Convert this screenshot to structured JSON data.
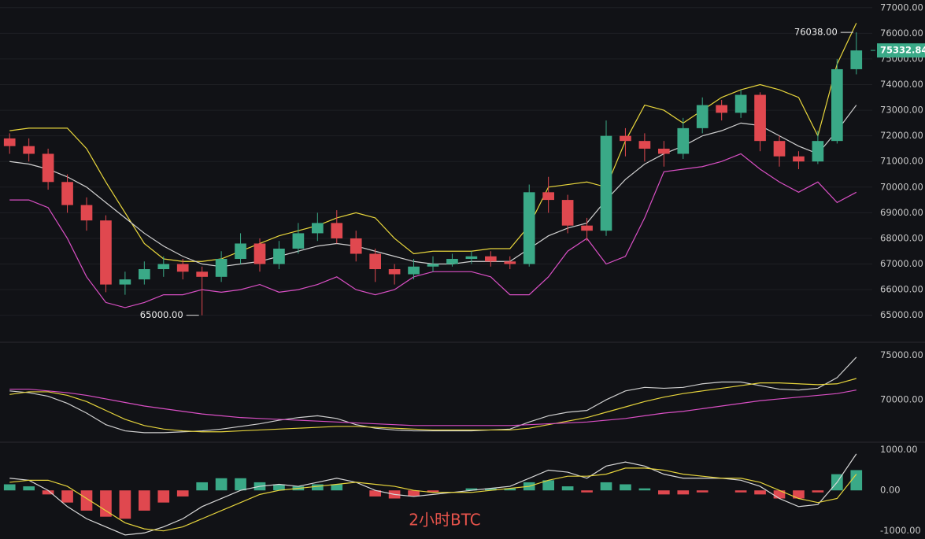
{
  "chart_data": [
    {
      "type": "candlestick",
      "grid": true,
      "up_color": "#3aa987",
      "down_color": "#e0484f",
      "ylim": [
        64100,
        77300
      ],
      "yticks": [
        {
          "value": 65000,
          "label": "65000.00"
        },
        {
          "value": 66000,
          "label": "66000.00"
        },
        {
          "value": 67000,
          "label": "67000.00"
        },
        {
          "value": 68000,
          "label": "68000.00"
        },
        {
          "value": 69000,
          "label": "69000.00"
        },
        {
          "value": 70000,
          "label": "70000.00"
        },
        {
          "value": 71000,
          "label": "71000.00"
        },
        {
          "value": 72000,
          "label": "72000.00"
        },
        {
          "value": 73000,
          "label": "73000.00"
        },
        {
          "value": 74000,
          "label": "74000.00"
        },
        {
          "value": 75000,
          "label": "75000.00"
        },
        {
          "value": 76000,
          "label": "76000.00"
        },
        {
          "value": 77000,
          "label": "77000.00"
        }
      ],
      "open": [
        71900,
        71600,
        71300,
        70200,
        69300,
        68700,
        66200,
        66400,
        66800,
        67000,
        66700,
        66500,
        67200,
        67800,
        67000,
        67600,
        68200,
        68600,
        68000,
        67400,
        66800,
        66600,
        66900,
        67000,
        67200,
        67300,
        67100,
        67000,
        69800,
        69500,
        68500,
        68300,
        72000,
        71800,
        71500,
        71300,
        72300,
        73200,
        72900,
        73600,
        71800,
        71200,
        71000,
        71800,
        74600
      ],
      "high": [
        72100,
        71900,
        71500,
        70500,
        69600,
        68900,
        66700,
        67100,
        67300,
        67200,
        66900,
        67500,
        68200,
        68000,
        67900,
        68600,
        69000,
        69100,
        68300,
        67600,
        67000,
        67200,
        67300,
        67400,
        67500,
        67500,
        67300,
        70100,
        70400,
        69700,
        68800,
        72600,
        72300,
        72100,
        71800,
        72700,
        73500,
        73400,
        73800,
        73700,
        72000,
        71400,
        72200,
        75000,
        76038
      ],
      "low": [
        71300,
        71000,
        69900,
        69000,
        68300,
        65900,
        65800,
        66200,
        66500,
        66400,
        65000,
        66300,
        67000,
        66700,
        66800,
        67400,
        67900,
        67800,
        67100,
        66300,
        66200,
        66400,
        66700,
        66900,
        67000,
        66900,
        66800,
        66900,
        69000,
        68200,
        67900,
        68100,
        71200,
        71000,
        70800,
        71100,
        72100,
        72600,
        72700,
        71400,
        70800,
        70700,
        70900,
        71700,
        74400
      ],
      "close": [
        71600,
        71300,
        70200,
        69300,
        68700,
        66200,
        66400,
        66800,
        67000,
        66700,
        66500,
        67200,
        67800,
        67000,
        67600,
        68200,
        68600,
        68000,
        67400,
        66800,
        66600,
        66900,
        67000,
        67200,
        67300,
        67100,
        67000,
        69800,
        69500,
        68500,
        68300,
        72000,
        71800,
        71500,
        71300,
        72300,
        73200,
        72900,
        73600,
        71800,
        71200,
        71000,
        71800,
        74600,
        75332.84
      ],
      "series": [
        {
          "color": "#e8d63c",
          "values": [
            72200,
            72300,
            72300,
            72300,
            71500,
            70200,
            69000,
            67800,
            67200,
            67100,
            67100,
            67200,
            67500,
            67800,
            68100,
            68300,
            68500,
            68800,
            69000,
            68800,
            68000,
            67400,
            67500,
            67500,
            67500,
            67600,
            67600,
            68500,
            70000,
            70100,
            70200,
            70000,
            71800,
            73200,
            73000,
            72500,
            73000,
            73500,
            73800,
            74000,
            73800,
            73500,
            72000,
            74800,
            76400
          ]
        },
        {
          "color": "#d0d0d0",
          "values": [
            71000,
            70900,
            70700,
            70400,
            70000,
            69400,
            68800,
            68200,
            67700,
            67300,
            67000,
            66900,
            67000,
            67100,
            67300,
            67500,
            67700,
            67800,
            67700,
            67500,
            67300,
            67100,
            67000,
            67000,
            67100,
            67100,
            67100,
            67600,
            68100,
            68400,
            68600,
            69500,
            70300,
            70900,
            71300,
            71600,
            72000,
            72200,
            72500,
            72400,
            72000,
            71600,
            71300,
            72200,
            73200
          ]
        },
        {
          "color": "#d94fc4",
          "values": [
            69500,
            69500,
            69200,
            68000,
            66500,
            65500,
            65300,
            65500,
            65800,
            65800,
            66000,
            65900,
            66000,
            66200,
            65900,
            66000,
            66200,
            66500,
            66000,
            65800,
            66000,
            66500,
            66700,
            66700,
            66700,
            66500,
            65800,
            65800,
            66500,
            67500,
            68000,
            67000,
            67300,
            68800,
            70600,
            70700,
            70800,
            71000,
            71300,
            70700,
            70200,
            69800,
            70200,
            69400,
            69800
          ]
        }
      ],
      "annotations": [
        {
          "value": 76038,
          "label": "76038.00"
        },
        {
          "value": 65000,
          "label": "65000.00"
        }
      ],
      "last_price": {
        "value": 75332.84,
        "label": "75332.84"
      }
    },
    {
      "type": "line",
      "ylim": [
        65400,
        76300
      ],
      "yticks": [
        {
          "value": 70000,
          "label": "70000.00"
        },
        {
          "value": 75000,
          "label": "75000.00"
        }
      ],
      "series": [
        {
          "color": "#cfcfcf",
          "values": [
            71000,
            70800,
            70400,
            69600,
            68500,
            67200,
            66500,
            66300,
            66300,
            66400,
            66500,
            66700,
            67000,
            67300,
            67700,
            68000,
            68200,
            67900,
            67200,
            66800,
            66600,
            66500,
            66500,
            66500,
            66500,
            66600,
            66700,
            67500,
            68200,
            68600,
            68800,
            70000,
            71000,
            71400,
            71300,
            71400,
            71800,
            72000,
            72000,
            71600,
            71200,
            71100,
            71300,
            72500,
            74800
          ]
        },
        {
          "color": "#e5d33c",
          "values": [
            70600,
            70900,
            70900,
            70500,
            69800,
            68800,
            67800,
            67100,
            66700,
            66500,
            66400,
            66400,
            66500,
            66600,
            66700,
            66800,
            66900,
            67000,
            67000,
            66900,
            66800,
            66700,
            66600,
            66600,
            66600,
            66600,
            66600,
            66800,
            67200,
            67600,
            68000,
            68600,
            69200,
            69800,
            70300,
            70700,
            71000,
            71300,
            71600,
            71900,
            71900,
            71800,
            71700,
            71800,
            72400
          ]
        },
        {
          "color": "#d94fc4",
          "values": [
            71200,
            71200,
            71000,
            70800,
            70500,
            70100,
            69700,
            69300,
            69000,
            68700,
            68400,
            68200,
            68000,
            67900,
            67800,
            67700,
            67600,
            67500,
            67400,
            67300,
            67200,
            67100,
            67100,
            67100,
            67100,
            67100,
            67100,
            67200,
            67300,
            67400,
            67500,
            67700,
            67900,
            68200,
            68500,
            68700,
            69000,
            69300,
            69600,
            69900,
            70100,
            70300,
            70500,
            70700,
            71100
          ]
        }
      ]
    },
    {
      "type": "macd",
      "ylim": [
        -1200,
        1150
      ],
      "yticks": [
        {
          "value": 1000,
          "label": "1000.00"
        },
        {
          "value": 0,
          "label": "0.00"
        },
        {
          "value": -1000,
          "label": "-1000.00"
        }
      ],
      "histogram": {
        "up_color": "#3aa987",
        "down_color": "#e0484f",
        "values": [
          150,
          100,
          -100,
          -300,
          -500,
          -650,
          -700,
          -500,
          -300,
          -150,
          200,
          300,
          300,
          200,
          150,
          100,
          150,
          150,
          0,
          -150,
          -200,
          -150,
          -50,
          0,
          50,
          50,
          50,
          200,
          250,
          100,
          -50,
          200,
          150,
          50,
          -100,
          -100,
          -50,
          0,
          -50,
          -100,
          -200,
          -200,
          -50,
          400,
          500
        ]
      },
      "series": [
        {
          "color": "#d8d8d8",
          "values": [
            300,
            250,
            0,
            -400,
            -700,
            -900,
            -1100,
            -1050,
            -900,
            -700,
            -400,
            -200,
            0,
            100,
            150,
            100,
            200,
            300,
            200,
            0,
            -100,
            -150,
            -100,
            -50,
            0,
            50,
            100,
            300,
            500,
            450,
            300,
            600,
            700,
            600,
            400,
            300,
            300,
            300,
            250,
            100,
            -200,
            -400,
            -350,
            200,
            900
          ]
        },
        {
          "color": "#e5d33c",
          "values": [
            200,
            250,
            250,
            100,
            -200,
            -500,
            -800,
            -950,
            -1000,
            -900,
            -700,
            -500,
            -300,
            -100,
            0,
            50,
            100,
            150,
            200,
            150,
            100,
            0,
            -50,
            -50,
            -50,
            0,
            50,
            100,
            250,
            350,
            350,
            400,
            550,
            550,
            500,
            400,
            350,
            300,
            300,
            200,
            0,
            -200,
            -300,
            -200,
            400
          ]
        }
      ],
      "caption": "2小时BTC"
    }
  ]
}
